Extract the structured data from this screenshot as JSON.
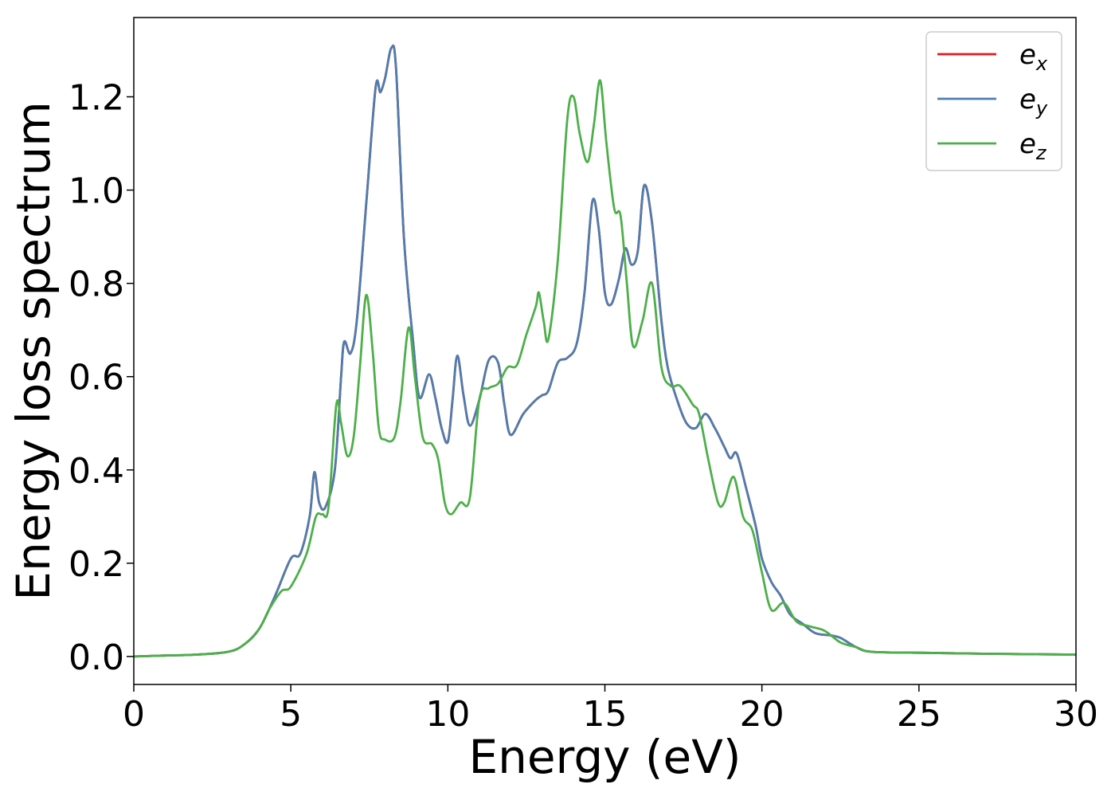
{
  "chart_data": {
    "type": "line",
    "title": "",
    "xlabel": "Energy (eV)",
    "ylabel": "Energy loss spectrum",
    "xlim": [
      0,
      30
    ],
    "ylim": [
      -0.06,
      1.37
    ],
    "x_ticks": [
      0,
      5,
      10,
      15,
      20,
      25,
      30
    ],
    "x_tick_labels": [
      "0",
      "5",
      "10",
      "15",
      "20",
      "25",
      "30"
    ],
    "y_ticks": [
      0.0,
      0.2,
      0.4,
      0.6,
      0.8,
      1.0,
      1.2
    ],
    "y_tick_labels": [
      "0.0",
      "0.2",
      "0.4",
      "0.6",
      "0.8",
      "1.0",
      "1.2"
    ],
    "grid": false,
    "legend_position": "top-right",
    "series": [
      {
        "name": "e_x",
        "legend_base": "e",
        "legend_sub": "x",
        "color": "#e41a1c",
        "points": [
          [
            0,
            0
          ],
          [
            1,
            0.002
          ],
          [
            2,
            0.004
          ],
          [
            3,
            0.01
          ],
          [
            3.5,
            0.025
          ],
          [
            4,
            0.06
          ],
          [
            4.5,
            0.13
          ],
          [
            5,
            0.21
          ],
          [
            5.3,
            0.22
          ],
          [
            5.6,
            0.3
          ],
          [
            5.75,
            0.395
          ],
          [
            5.9,
            0.33
          ],
          [
            6.1,
            0.32
          ],
          [
            6.4,
            0.4
          ],
          [
            6.6,
            0.6
          ],
          [
            6.7,
            0.675
          ],
          [
            6.9,
            0.65
          ],
          [
            7.1,
            0.72
          ],
          [
            7.4,
            0.97
          ],
          [
            7.7,
            1.22
          ],
          [
            7.85,
            1.21
          ],
          [
            8.0,
            1.24
          ],
          [
            8.2,
            1.305
          ],
          [
            8.35,
            1.26
          ],
          [
            8.6,
            0.9
          ],
          [
            8.9,
            0.67
          ],
          [
            9.1,
            0.555
          ],
          [
            9.4,
            0.605
          ],
          [
            9.6,
            0.555
          ],
          [
            9.8,
            0.49
          ],
          [
            10.0,
            0.46
          ],
          [
            10.15,
            0.55
          ],
          [
            10.3,
            0.645
          ],
          [
            10.5,
            0.56
          ],
          [
            10.7,
            0.495
          ],
          [
            11.0,
            0.55
          ],
          [
            11.3,
            0.635
          ],
          [
            11.6,
            0.63
          ],
          [
            11.8,
            0.54
          ],
          [
            12.0,
            0.475
          ],
          [
            12.4,
            0.52
          ],
          [
            12.8,
            0.55
          ],
          [
            13.0,
            0.56
          ],
          [
            13.2,
            0.57
          ],
          [
            13.5,
            0.63
          ],
          [
            13.8,
            0.64
          ],
          [
            14.1,
            0.67
          ],
          [
            14.35,
            0.78
          ],
          [
            14.6,
            0.975
          ],
          [
            14.8,
            0.92
          ],
          [
            15.0,
            0.78
          ],
          [
            15.2,
            0.755
          ],
          [
            15.45,
            0.81
          ],
          [
            15.65,
            0.875
          ],
          [
            15.85,
            0.84
          ],
          [
            16.05,
            0.87
          ],
          [
            16.25,
            1.01
          ],
          [
            16.5,
            0.93
          ],
          [
            16.8,
            0.72
          ],
          [
            17.0,
            0.62
          ],
          [
            17.3,
            0.55
          ],
          [
            17.6,
            0.5
          ],
          [
            17.9,
            0.49
          ],
          [
            18.2,
            0.52
          ],
          [
            18.5,
            0.49
          ],
          [
            18.8,
            0.45
          ],
          [
            19.0,
            0.425
          ],
          [
            19.2,
            0.435
          ],
          [
            19.5,
            0.36
          ],
          [
            19.8,
            0.28
          ],
          [
            20.0,
            0.21
          ],
          [
            20.3,
            0.16
          ],
          [
            20.6,
            0.13
          ],
          [
            20.9,
            0.09
          ],
          [
            21.3,
            0.07
          ],
          [
            21.7,
            0.05
          ],
          [
            22.2,
            0.045
          ],
          [
            22.5,
            0.04
          ],
          [
            23.0,
            0.02
          ],
          [
            23.5,
            0.01
          ],
          [
            25,
            0.008
          ],
          [
            27,
            0.006
          ],
          [
            30,
            0.004
          ]
        ]
      },
      {
        "name": "e_y",
        "legend_base": "e",
        "legend_sub": "y",
        "color": "#4e7dae",
        "points": [
          [
            0,
            0
          ],
          [
            1,
            0.002
          ],
          [
            2,
            0.004
          ],
          [
            3,
            0.01
          ],
          [
            3.5,
            0.025
          ],
          [
            4,
            0.06
          ],
          [
            4.5,
            0.13
          ],
          [
            5,
            0.21
          ],
          [
            5.3,
            0.22
          ],
          [
            5.6,
            0.3
          ],
          [
            5.75,
            0.395
          ],
          [
            5.9,
            0.33
          ],
          [
            6.1,
            0.32
          ],
          [
            6.4,
            0.4
          ],
          [
            6.6,
            0.6
          ],
          [
            6.7,
            0.675
          ],
          [
            6.9,
            0.65
          ],
          [
            7.1,
            0.72
          ],
          [
            7.4,
            0.97
          ],
          [
            7.7,
            1.22
          ],
          [
            7.85,
            1.21
          ],
          [
            8.0,
            1.24
          ],
          [
            8.2,
            1.305
          ],
          [
            8.35,
            1.26
          ],
          [
            8.6,
            0.9
          ],
          [
            8.9,
            0.67
          ],
          [
            9.1,
            0.555
          ],
          [
            9.4,
            0.605
          ],
          [
            9.6,
            0.555
          ],
          [
            9.8,
            0.49
          ],
          [
            10.0,
            0.46
          ],
          [
            10.15,
            0.55
          ],
          [
            10.3,
            0.645
          ],
          [
            10.5,
            0.56
          ],
          [
            10.7,
            0.495
          ],
          [
            11.0,
            0.55
          ],
          [
            11.3,
            0.635
          ],
          [
            11.6,
            0.63
          ],
          [
            11.8,
            0.54
          ],
          [
            12.0,
            0.475
          ],
          [
            12.4,
            0.52
          ],
          [
            12.8,
            0.55
          ],
          [
            13.0,
            0.56
          ],
          [
            13.2,
            0.57
          ],
          [
            13.5,
            0.63
          ],
          [
            13.8,
            0.64
          ],
          [
            14.1,
            0.67
          ],
          [
            14.35,
            0.78
          ],
          [
            14.6,
            0.975
          ],
          [
            14.8,
            0.92
          ],
          [
            15.0,
            0.78
          ],
          [
            15.2,
            0.755
          ],
          [
            15.45,
            0.81
          ],
          [
            15.65,
            0.875
          ],
          [
            15.85,
            0.84
          ],
          [
            16.05,
            0.87
          ],
          [
            16.25,
            1.01
          ],
          [
            16.5,
            0.93
          ],
          [
            16.8,
            0.72
          ],
          [
            17.0,
            0.62
          ],
          [
            17.3,
            0.55
          ],
          [
            17.6,
            0.5
          ],
          [
            17.9,
            0.49
          ],
          [
            18.2,
            0.52
          ],
          [
            18.5,
            0.49
          ],
          [
            18.8,
            0.45
          ],
          [
            19.0,
            0.425
          ],
          [
            19.2,
            0.435
          ],
          [
            19.5,
            0.36
          ],
          [
            19.8,
            0.28
          ],
          [
            20.0,
            0.21
          ],
          [
            20.3,
            0.16
          ],
          [
            20.6,
            0.13
          ],
          [
            20.9,
            0.09
          ],
          [
            21.3,
            0.07
          ],
          [
            21.7,
            0.05
          ],
          [
            22.2,
            0.045
          ],
          [
            22.5,
            0.04
          ],
          [
            23.0,
            0.02
          ],
          [
            23.5,
            0.01
          ],
          [
            25,
            0.008
          ],
          [
            27,
            0.006
          ],
          [
            30,
            0.004
          ]
        ]
      },
      {
        "name": "e_z",
        "legend_base": "e",
        "legend_sub": "z",
        "color": "#4daf4a",
        "points": [
          [
            0,
            0
          ],
          [
            1,
            0.002
          ],
          [
            2,
            0.004
          ],
          [
            3,
            0.01
          ],
          [
            3.5,
            0.025
          ],
          [
            4,
            0.06
          ],
          [
            4.3,
            0.1
          ],
          [
            4.7,
            0.14
          ],
          [
            5.0,
            0.15
          ],
          [
            5.5,
            0.22
          ],
          [
            5.8,
            0.3
          ],
          [
            6.0,
            0.305
          ],
          [
            6.2,
            0.32
          ],
          [
            6.45,
            0.54
          ],
          [
            6.6,
            0.5
          ],
          [
            6.8,
            0.43
          ],
          [
            7.0,
            0.47
          ],
          [
            7.2,
            0.62
          ],
          [
            7.4,
            0.775
          ],
          [
            7.6,
            0.66
          ],
          [
            7.8,
            0.49
          ],
          [
            8.0,
            0.465
          ],
          [
            8.3,
            0.47
          ],
          [
            8.5,
            0.55
          ],
          [
            8.75,
            0.705
          ],
          [
            8.95,
            0.6
          ],
          [
            9.2,
            0.47
          ],
          [
            9.5,
            0.455
          ],
          [
            9.7,
            0.42
          ],
          [
            9.9,
            0.33
          ],
          [
            10.1,
            0.305
          ],
          [
            10.4,
            0.33
          ],
          [
            10.7,
            0.34
          ],
          [
            11.0,
            0.55
          ],
          [
            11.3,
            0.575
          ],
          [
            11.6,
            0.585
          ],
          [
            11.9,
            0.62
          ],
          [
            12.2,
            0.625
          ],
          [
            12.5,
            0.69
          ],
          [
            12.8,
            0.75
          ],
          [
            12.9,
            0.78
          ],
          [
            13.05,
            0.72
          ],
          [
            13.2,
            0.68
          ],
          [
            13.5,
            0.85
          ],
          [
            13.8,
            1.15
          ],
          [
            14.0,
            1.2
          ],
          [
            14.2,
            1.12
          ],
          [
            14.45,
            1.06
          ],
          [
            14.65,
            1.14
          ],
          [
            14.85,
            1.235
          ],
          [
            15.05,
            1.1
          ],
          [
            15.3,
            0.96
          ],
          [
            15.5,
            0.945
          ],
          [
            15.7,
            0.8
          ],
          [
            15.9,
            0.665
          ],
          [
            16.2,
            0.72
          ],
          [
            16.5,
            0.8
          ],
          [
            16.8,
            0.62
          ],
          [
            17.1,
            0.58
          ],
          [
            17.4,
            0.58
          ],
          [
            17.8,
            0.54
          ],
          [
            18.0,
            0.52
          ],
          [
            18.3,
            0.42
          ],
          [
            18.6,
            0.33
          ],
          [
            18.8,
            0.33
          ],
          [
            19.1,
            0.385
          ],
          [
            19.4,
            0.3
          ],
          [
            19.7,
            0.27
          ],
          [
            20.0,
            0.18
          ],
          [
            20.3,
            0.1
          ],
          [
            20.7,
            0.115
          ],
          [
            21.1,
            0.075
          ],
          [
            21.5,
            0.065
          ],
          [
            22.0,
            0.055
          ],
          [
            22.5,
            0.03
          ],
          [
            23.0,
            0.02
          ],
          [
            23.5,
            0.01
          ],
          [
            25,
            0.008
          ],
          [
            27,
            0.006
          ],
          [
            30,
            0.004
          ]
        ]
      }
    ]
  }
}
